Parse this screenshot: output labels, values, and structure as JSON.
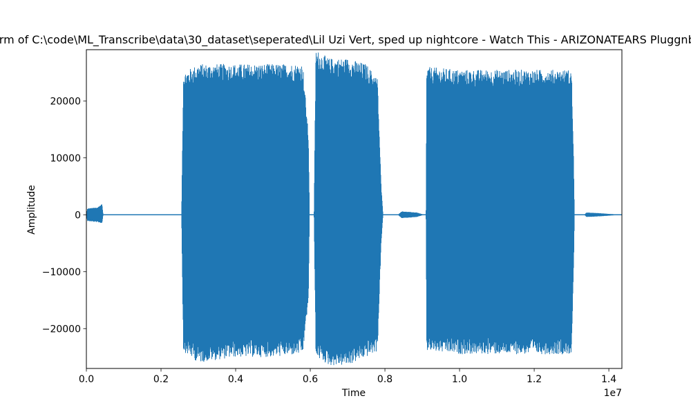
{
  "chart_data": {
    "type": "line",
    "title": "Waveform of C:\\code\\ML_Transcribe\\data\\30_dataset\\seperated\\Lil Uzi Vert, sped up nightcore - Watch This - ARIZONATEARS Pluggnb Remix",
    "xlabel": "Time",
    "ylabel": "Amplitude",
    "x_offset_label": "1e7",
    "xlim": [
      0,
      14350000
    ],
    "ylim": [
      -27000,
      29000
    ],
    "grid": false,
    "color": "#1f77b4",
    "xticks": [
      {
        "value": 0,
        "label": "0.0"
      },
      {
        "value": 2000000,
        "label": "0.2"
      },
      {
        "value": 4000000,
        "label": "0.4"
      },
      {
        "value": 6000000,
        "label": "0.6"
      },
      {
        "value": 8000000,
        "label": "0.8"
      },
      {
        "value": 10000000,
        "label": "1.0"
      },
      {
        "value": 12000000,
        "label": "1.2"
      },
      {
        "value": 14000000,
        "label": "1.4"
      }
    ],
    "yticks": [
      {
        "value": -20000,
        "label": "−20000"
      },
      {
        "value": -10000,
        "label": "−10000"
      },
      {
        "value": 0,
        "label": "0"
      },
      {
        "value": 10000,
        "label": "10000"
      },
      {
        "value": 20000,
        "label": "20000"
      }
    ],
    "series": [
      {
        "x_start": 0,
        "x_end": 14350000,
        "envelope_max": [
          [
            0,
            0
          ],
          [
            30000,
            1100
          ],
          [
            150000,
            1200
          ],
          [
            300000,
            1300
          ],
          [
            420000,
            1900
          ],
          [
            450000,
            0
          ],
          [
            2550000,
            0
          ],
          [
            2600000,
            25000
          ],
          [
            3000000,
            26500
          ],
          [
            4000000,
            26500
          ],
          [
            5000000,
            26500
          ],
          [
            5800000,
            26500
          ],
          [
            5950000,
            14000
          ],
          [
            5980000,
            0
          ],
          [
            6100000,
            0
          ],
          [
            6150000,
            29000
          ],
          [
            6500000,
            27500
          ],
          [
            7000000,
            27500
          ],
          [
            7500000,
            26500
          ],
          [
            7800000,
            24000
          ],
          [
            7900000,
            5000
          ],
          [
            7950000,
            0
          ],
          [
            8350000,
            0
          ],
          [
            8450000,
            600
          ],
          [
            8850000,
            400
          ],
          [
            9050000,
            0
          ],
          [
            9100000,
            0
          ],
          [
            9120000,
            26000
          ],
          [
            10000000,
            25500
          ],
          [
            11000000,
            25500
          ],
          [
            12000000,
            25500
          ],
          [
            13000000,
            25500
          ],
          [
            13050000,
            12000
          ],
          [
            13080000,
            0
          ],
          [
            13350000,
            0
          ],
          [
            13400000,
            400
          ],
          [
            13700000,
            300
          ],
          [
            14350000,
            0
          ]
        ],
        "envelope_min": [
          [
            0,
            0
          ],
          [
            30000,
            -1100
          ],
          [
            150000,
            -1200
          ],
          [
            300000,
            -1300
          ],
          [
            420000,
            -1500
          ],
          [
            450000,
            0
          ],
          [
            2550000,
            0
          ],
          [
            2600000,
            -24000
          ],
          [
            3000000,
            -26000
          ],
          [
            4000000,
            -25000
          ],
          [
            5000000,
            -25000
          ],
          [
            5800000,
            -24500
          ],
          [
            5950000,
            -15000
          ],
          [
            5980000,
            0
          ],
          [
            6100000,
            0
          ],
          [
            6150000,
            -25000
          ],
          [
            6500000,
            -26500
          ],
          [
            7000000,
            -26500
          ],
          [
            7500000,
            -25000
          ],
          [
            7800000,
            -24000
          ],
          [
            7900000,
            -5000
          ],
          [
            7950000,
            0
          ],
          [
            8350000,
            0
          ],
          [
            8450000,
            -600
          ],
          [
            8850000,
            -400
          ],
          [
            9050000,
            0
          ],
          [
            9100000,
            0
          ],
          [
            9120000,
            -24000
          ],
          [
            10000000,
            -24500
          ],
          [
            11000000,
            -24500
          ],
          [
            12000000,
            -24500
          ],
          [
            13000000,
            -24500
          ],
          [
            13050000,
            -12000
          ],
          [
            13080000,
            0
          ],
          [
            13350000,
            0
          ],
          [
            13400000,
            -400
          ],
          [
            13700000,
            -300
          ],
          [
            14350000,
            0
          ]
        ]
      }
    ]
  }
}
